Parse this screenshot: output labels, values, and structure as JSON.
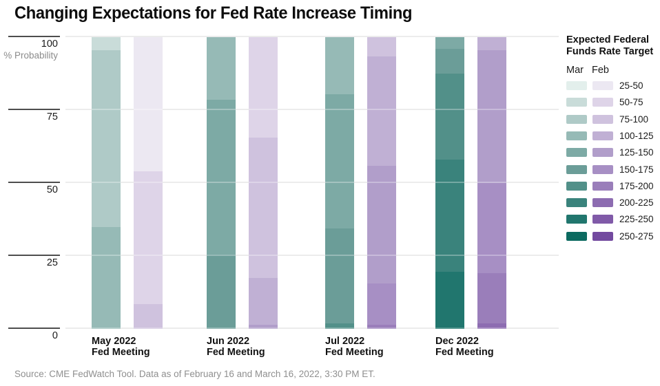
{
  "title": "Changing Expectations for Fed Rate Increase Timing",
  "source": "Source: CME FedWatch Tool. Data as of February 16 and March 16, 2022, 3:30 PM ET.",
  "y_axis": {
    "unit_label": "% Probability",
    "ticks": [
      100,
      75,
      50,
      25,
      0
    ]
  },
  "legend": {
    "title_line1": "Expected Federal",
    "title_line2": "Funds Rate Target",
    "col1": "Mar",
    "col2": "Feb",
    "ranges": [
      "25-50",
      "50-75",
      "75-100",
      "100-125",
      "125-150",
      "150-175",
      "175-200",
      "200-225",
      "225-250",
      "250-275"
    ]
  },
  "palette": {
    "mar": [
      "#e3efec",
      "#c9dcd9",
      "#afcac7",
      "#96bab6",
      "#7daaa5",
      "#6b9d98",
      "#529089",
      "#3a837c",
      "#21766e",
      "#0c6a60"
    ],
    "feb": [
      "#ece8f2",
      "#ded4e8",
      "#cfc2de",
      "#c0b0d4",
      "#b19eca",
      "#a78fc4",
      "#9a7eba",
      "#8d6cb1",
      "#805aa8",
      "#734a9f"
    ]
  },
  "chart_data": {
    "type": "bar",
    "variant": "stacked-percentage",
    "ylabel": "% Probability",
    "ylim": [
      0,
      100
    ],
    "grid": true,
    "legend_position": "right",
    "series_labels": [
      "Mar",
      "Feb"
    ],
    "categories": [
      "May 2022 Fed Meeting",
      "Jun 2022 Fed Meeting",
      "Jul 2022 Fed Meeting",
      "Dec 2022 Fed Meeting"
    ],
    "groups": [
      {
        "label_line1": "May 2022",
        "label_line2": "Fed Meeting",
        "mar": [
          {
            "range": "50-75",
            "value": 4.5
          },
          {
            "range": "75-100",
            "value": 60.5
          },
          {
            "range": "100-125",
            "value": 35
          }
        ],
        "feb": [
          {
            "range": "25-50",
            "value": 46
          },
          {
            "range": "50-75",
            "value": 45.5
          },
          {
            "range": "75-100",
            "value": 8.5
          }
        ]
      },
      {
        "label_line1": "Jun 2022",
        "label_line2": "Fed Meeting",
        "mar": [
          {
            "range": "100-125",
            "value": 21.5
          },
          {
            "range": "125-150",
            "value": 53
          },
          {
            "range": "150-175",
            "value": 25.5
          }
        ],
        "feb": [
          {
            "range": "50-75",
            "value": 34.5
          },
          {
            "range": "75-100",
            "value": 48
          },
          {
            "range": "100-125",
            "value": 16
          },
          {
            "range": "125-150",
            "value": 1.5
          }
        ]
      },
      {
        "label_line1": "Jul 2022",
        "label_line2": "Fed Meeting",
        "mar": [
          {
            "range": "100-125",
            "value": 19.5
          },
          {
            "range": "125-150",
            "value": 46
          },
          {
            "range": "150-175",
            "value": 32.5
          },
          {
            "range": "175-200",
            "value": 2
          }
        ],
        "feb": [
          {
            "range": "75-100",
            "value": 6.5
          },
          {
            "range": "100-125",
            "value": 37.5
          },
          {
            "range": "125-150",
            "value": 40.5
          },
          {
            "range": "150-175",
            "value": 14
          },
          {
            "range": "175-200",
            "value": 1.5
          }
        ]
      },
      {
        "label_line1": "Dec 2022",
        "label_line2": "Fed Meeting",
        "mar": [
          {
            "range": "125-150",
            "value": 4
          },
          {
            "range": "150-175",
            "value": 8.5
          },
          {
            "range": "175-200",
            "value": 29.5
          },
          {
            "range": "200-225",
            "value": 38.5
          },
          {
            "range": "225-250",
            "value": 19
          },
          {
            "range": "250-275",
            "value": 0.5
          }
        ],
        "feb": [
          {
            "range": "100-125",
            "value": 4.5
          },
          {
            "range": "125-150",
            "value": 45.5
          },
          {
            "range": "150-175",
            "value": 31
          },
          {
            "range": "175-200",
            "value": 17
          },
          {
            "range": "200-225",
            "value": 2
          }
        ]
      }
    ]
  }
}
